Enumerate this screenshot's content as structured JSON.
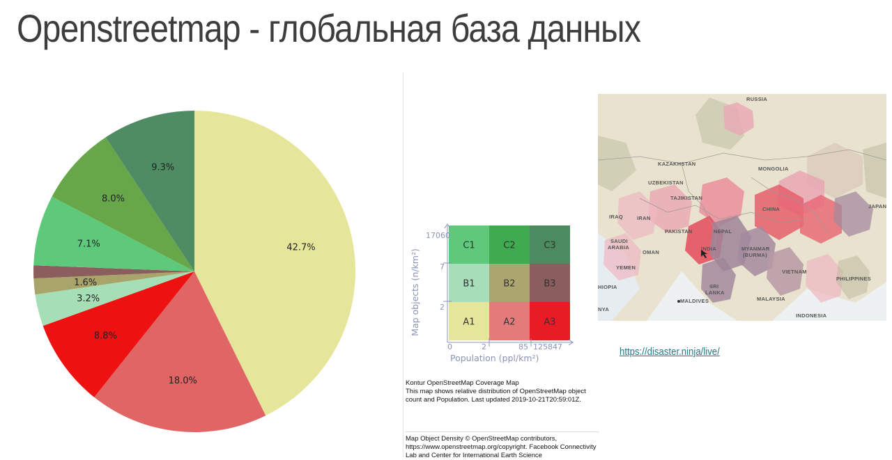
{
  "page": {
    "title": "Openstreetmap - глобальная база данных",
    "link": "https://disaster.ninja/live/"
  },
  "chart_data": [
    {
      "type": "pie",
      "title": "",
      "start_angle_deg": 0,
      "direction": "clockwise",
      "slices": [
        {
          "label": "42.7%",
          "value": 42.7,
          "color": "#e6e69a"
        },
        {
          "label": "18.0%",
          "value": 18.0,
          "color": "#e06666"
        },
        {
          "label": "8.8%",
          "value": 8.8,
          "color": "#ee1111"
        },
        {
          "label": "3.2%",
          "value": 3.2,
          "color": "#a6dfb6"
        },
        {
          "label": "1.6%",
          "value": 1.6,
          "color": "#a9a469"
        },
        {
          "label": "",
          "value": 1.3,
          "color": "#8b5d5d"
        },
        {
          "label": "7.1%",
          "value": 7.1,
          "color": "#5ec97b"
        },
        {
          "label": "8.0%",
          "value": 8.0,
          "color": "#68a64a"
        },
        {
          "label": "9.3%",
          "value": 9.3,
          "color": "#4f8c63"
        }
      ]
    },
    {
      "type": "heatmap",
      "xlabel": "Population (ppl/km²)",
      "ylabel": "Map objects (n/km²)",
      "x_ticks": [
        "0",
        "2",
        "85",
        "125847"
      ],
      "y_ticks": [
        "17060",
        "7",
        "2"
      ],
      "cells": [
        {
          "label": "C1",
          "color": "#5ec97b"
        },
        {
          "label": "C2",
          "color": "#3faa4f"
        },
        {
          "label": "C3",
          "color": "#4c8a5f"
        },
        {
          "label": "B1",
          "color": "#a7ddb8"
        },
        {
          "label": "B2",
          "color": "#aca56f"
        },
        {
          "label": "B3",
          "color": "#8b5e5e"
        },
        {
          "label": "A1",
          "color": "#e6e69a"
        },
        {
          "label": "A2",
          "color": "#e47b7b"
        },
        {
          "label": "A3",
          "color": "#e81c24"
        }
      ]
    }
  ],
  "caption": {
    "title": "Kontur OpenStreetMap Coverage Map",
    "text": "This map shows relative distribution of OpenStreetMap object count and Population. Last updated 2019-10-21T20:59:01Z.",
    "credits": "Map Object Density © OpenStreetMap contributors, https://www.openstreetmap.org/copyright. Facebook Connectivity Lab and Center for International Earth Science"
  },
  "map": {
    "labels": [
      "RUSSIA",
      "KAZAKHSTAN",
      "MONGOLIA",
      "UZBEKISTAN",
      "TAJIKISTAN",
      "JAPAN",
      "IRAQ",
      "IRAN",
      "CHINA",
      "PAKISTAN",
      "NEPAL",
      "SAUDI",
      "ARABIA",
      "OMAN",
      "INDIA",
      "MYANMAR",
      "(BURMA)",
      "YEMEN",
      "VIETNAM",
      "PHILIPPINES",
      "HIOPIA",
      "SRI",
      "LANKA",
      "MALDIVES",
      "MALAYSIA",
      "NYA",
      "INDONESIA"
    ]
  }
}
